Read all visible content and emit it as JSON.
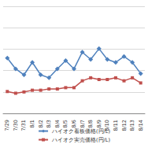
{
  "chart_data": {
    "type": "line",
    "categories": [
      "7/29",
      "7/30",
      "7/31",
      "8/1",
      "8/2",
      "8/3",
      "8/4",
      "8/5",
      "8/6",
      "8/7",
      "8/8",
      "8/9",
      "8/10",
      "8/11",
      "8/12",
      "8/13",
      "8/14"
    ],
    "series": [
      {
        "name": "ハイオク看板価格(円/L)",
        "color": "#4f81bd",
        "marker": "diamond",
        "line_style": "solid",
        "values": [
          157.9,
          155.4,
          154,
          156.9,
          154,
          153.3,
          155.4,
          157.3,
          155.4,
          159.3,
          157.6,
          160.1,
          157.6,
          156.9,
          158.3,
          156.9,
          154.3
        ]
      },
      {
        "name": "ハイオク実売価格(円/L)",
        "color": "#c0504d",
        "marker": "square",
        "line_style": "solid",
        "values": [
          150.1,
          149.7,
          150,
          150.4,
          150.4,
          150.7,
          150.7,
          151,
          151,
          152.6,
          153.3,
          152.9,
          152.9,
          153.3,
          152.6,
          153.3,
          152.1
        ]
      }
    ],
    "ylim": [
      145,
      170
    ],
    "yticks": [
      145,
      150,
      155,
      160,
      165,
      170
    ],
    "grid": true,
    "legend": "bottom",
    "tick_labels": "x"
  }
}
